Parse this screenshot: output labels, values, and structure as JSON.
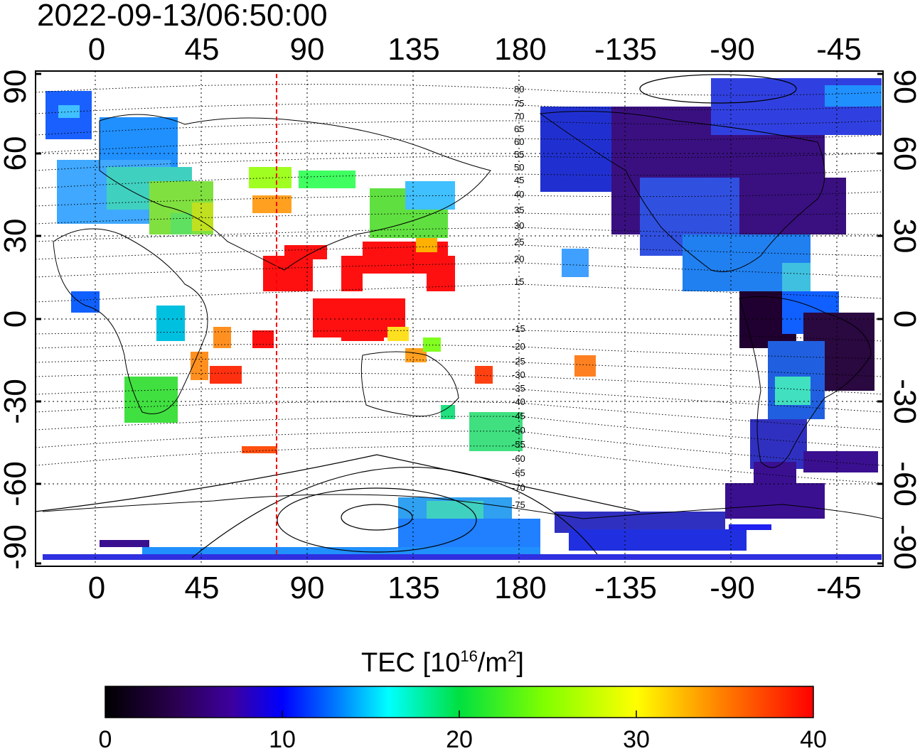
{
  "timestamp": "2022-09-13/06:50:00",
  "map": {
    "lon_ticks": [
      "0",
      "45",
      "90",
      "135",
      "180",
      "-135",
      "-90",
      "-45"
    ],
    "lat_ticks": [
      "90",
      "60",
      "30",
      "0",
      "-30",
      "-60",
      "-90"
    ],
    "mlat_labels_north": [
      "80",
      "75",
      "70",
      "65",
      "60",
      "55",
      "50",
      "45",
      "40",
      "35",
      "30",
      "25",
      "20",
      "15"
    ],
    "mlat_labels_south": [
      "-15",
      "-20",
      "-25",
      "-30",
      "-35",
      "-40",
      "-45",
      "-50",
      "-55",
      "-60",
      "-65",
      "-70",
      "-75"
    ],
    "subsolar_marker_color": "#ff0000"
  },
  "colorbar": {
    "title": "TEC  [10",
    "title_sup": "16",
    "title_unit": "/m",
    "title_sup2": "2",
    "title_close": "]",
    "min": 0,
    "max": 40,
    "ticks": [
      "0",
      "10",
      "20",
      "30",
      "40"
    ],
    "colors": [
      "#000000",
      "#3a0060",
      "#4000b0",
      "#0000ff",
      "#0070ff",
      "#00ffff",
      "#00ff40",
      "#80ff00",
      "#ffff00",
      "#ff8000",
      "#ff0000"
    ]
  }
}
